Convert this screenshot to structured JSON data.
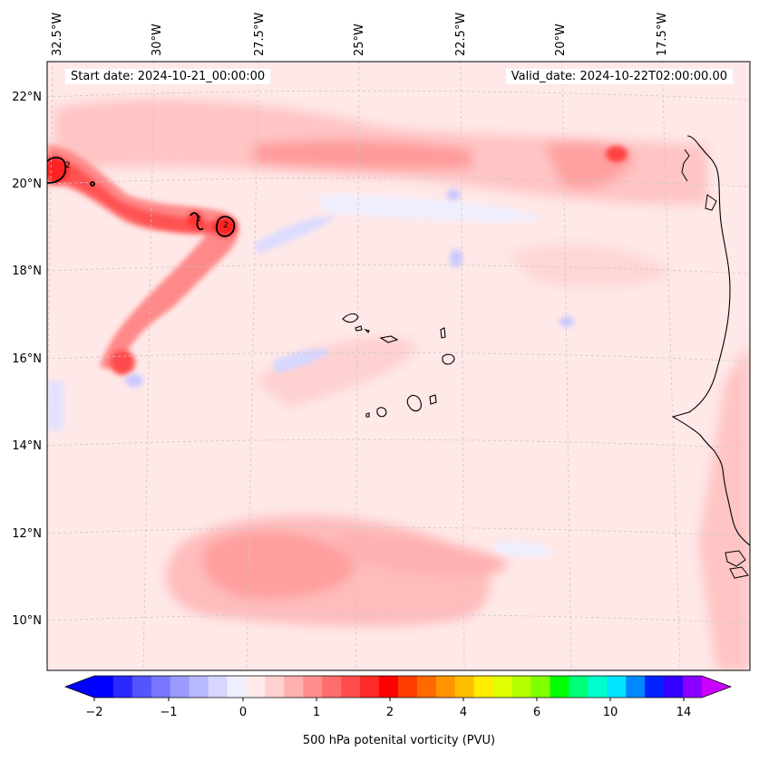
{
  "map": {
    "start_date": "Start date: 2024-10-21_00:00:00",
    "valid_date": "Valid_date: 2024-10-22T02:00:00.00",
    "lon_labels": [
      "32.5°W",
      "30°W",
      "27.5°W",
      "25°W",
      "22.5°W",
      "20°W",
      "17.5°W"
    ],
    "lat_labels": [
      "22°N",
      "20°N",
      "18°N",
      "16°N",
      "14°N",
      "12°N",
      "10°N"
    ],
    "contour_labels": [
      "2",
      "2",
      "2"
    ]
  },
  "colorbar": {
    "title": "500 hPa potenital vorticity (PVU)",
    "tick_labels": [
      "−2",
      "−1",
      "0",
      "1",
      "2",
      "4",
      "6",
      "10",
      "14"
    ],
    "colors": [
      "#0000ff",
      "#2a2aff",
      "#5555ff",
      "#7777ff",
      "#9a9aff",
      "#b8b8ff",
      "#d6d6ff",
      "#eeeeff",
      "#ffe9e9",
      "#ffd0d0",
      "#ffb0b0",
      "#ff8f8f",
      "#ff6d6d",
      "#ff4d4d",
      "#ff2a2a",
      "#ff0000",
      "#ff3d00",
      "#ff6a00",
      "#ff9400",
      "#ffbd00",
      "#ffec00",
      "#e0ff00",
      "#b4ff00",
      "#80ff00",
      "#00ff00",
      "#00ff7a",
      "#00ffcc",
      "#00e5ff",
      "#0088ff",
      "#0022ff",
      "#3300ff",
      "#8800ff"
    ],
    "under_color": "#0000ff",
    "over_color": "#cc00ff"
  },
  "colors": {
    "background_field": "#ffe8e8",
    "coastline": "#000000",
    "gridline": "#c8c8c8"
  }
}
